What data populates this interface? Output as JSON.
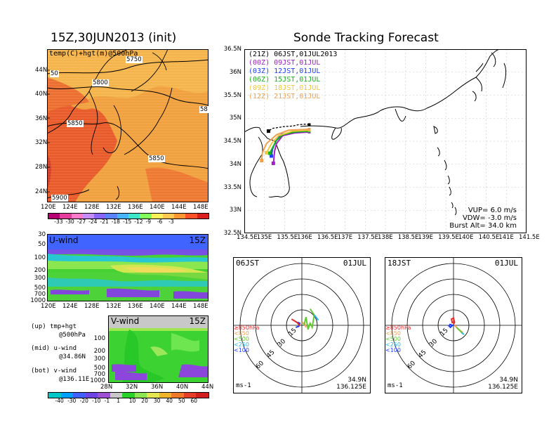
{
  "left_title": "15Z,30JUN2013 (init)",
  "right_title": "Sonde Tracking Forecast",
  "map500": {
    "label": "temp(C)+hgt(m)@500hPa",
    "lat_ticks": [
      "44N",
      "40N",
      "36N",
      "32N",
      "28N",
      "24N"
    ],
    "lon_ticks": [
      "120E",
      "124E",
      "128E",
      "132E",
      "136E",
      "140E",
      "144E",
      "148E"
    ],
    "contour_labels": [
      "50",
      "5750",
      "5800",
      "5850",
      "5850",
      "5900",
      "58"
    ],
    "colorbar_labels": [
      "-33",
      "-30",
      "-27",
      "-24",
      "-21",
      "-18",
      "-15",
      "-12",
      "-9",
      "-6",
      "-3"
    ],
    "colorbar_colors": [
      "#b40070",
      "#e43c9a",
      "#ff7ac8",
      "#c68cff",
      "#8a64ff",
      "#5a82ff",
      "#46b4ff",
      "#3ce6c8",
      "#82ff5a",
      "#fff05a",
      "#ffc850",
      "#ff9632",
      "#ff5028",
      "#dc1e1e"
    ]
  },
  "uwind": {
    "title": "U-wind",
    "time": "15Z",
    "p_ticks": [
      "30",
      "50",
      "100",
      "200",
      "300",
      "500",
      "700",
      "1000"
    ],
    "lon_ticks": [
      "120E",
      "124E",
      "128E",
      "132E",
      "136E",
      "140E",
      "144E",
      "148E"
    ]
  },
  "vwind": {
    "title": "V-wind",
    "time": "15Z",
    "p_ticks": [
      "100",
      "200",
      "300",
      "500",
      "700",
      "1000"
    ],
    "lat_ticks": [
      "28N",
      "32N",
      "36N",
      "40N",
      "44N"
    ],
    "colorbar_labels": [
      "-40",
      "-30",
      "-20",
      "-10",
      "-1",
      "1",
      "10",
      "20",
      "30",
      "40",
      "50",
      "60"
    ],
    "colorbar_colors": [
      "#00c8c8",
      "#00a0ff",
      "#4060ff",
      "#6e46e6",
      "#a050d2",
      "#c8c8c8",
      "#28d228",
      "#8ce650",
      "#e6e650",
      "#f0b428",
      "#f07828",
      "#e63c28",
      "#d21e1e"
    ]
  },
  "notes": [
    {
      "line1": "(up) tmp+hgt",
      "line2": "@500hPa"
    },
    {
      "line1": "(mid) u-wind",
      "line2": "@34.86N"
    },
    {
      "line1": "(bot) v-wind",
      "line2": "@136.11E"
    }
  ],
  "track_map": {
    "lat_ticks": [
      "36.5N",
      "36N",
      "35.5N",
      "35N",
      "34.5N",
      "34N",
      "33.5N",
      "33N",
      "32.5N"
    ],
    "lon_ticks": [
      "134.5E",
      "135E",
      "135.5E",
      "136E",
      "136.5E",
      "137E",
      "137.5E",
      "138E",
      "138.5E",
      "139E",
      "139.5E",
      "140E",
      "140.5E",
      "141E",
      "141.5E"
    ],
    "legend": [
      {
        "time": "(21Z)",
        "label": "06JST,01JUL2013",
        "color": "#000000"
      },
      {
        "time": "(00Z)",
        "label": "09JST,01JUL",
        "color": "#a020c8"
      },
      {
        "time": "(03Z)",
        "label": "12JST,01JUL",
        "color": "#1e3cff"
      },
      {
        "time": "(06Z)",
        "label": "15JST,01JUL",
        "color": "#14b414"
      },
      {
        "time": "(09Z)",
        "label": "18JST,01JUL",
        "color": "#f0c83c"
      },
      {
        "time": "(12Z)",
        "label": "21JST,01JUL",
        "color": "#f0a050"
      }
    ],
    "params": [
      {
        "label": "VUP=",
        "value": "6.0",
        "unit": "m/s"
      },
      {
        "label": "VDW=",
        "value": "-3.0",
        "unit": "m/s"
      },
      {
        "label": "Burst Alt=",
        "value": "34.0",
        "unit": "km"
      }
    ]
  },
  "hodo1": {
    "time": "06JST",
    "date": "01JUL",
    "ring_labels": [
      "15",
      "30",
      "45",
      "60"
    ],
    "levels": [
      "≥850hPa",
      "<850",
      "<500",
      "<250",
      "<100"
    ],
    "level_colors": [
      "#e62828",
      "#f0a050",
      "#64c832",
      "#28b4e6",
      "#1e3cff"
    ],
    "unit": "ms-1",
    "lat": "34.9N",
    "lon": "136.125E"
  },
  "hodo2": {
    "time": "18JST",
    "date": "01JUL",
    "ring_labels": [
      "15",
      "30",
      "45",
      "60"
    ],
    "levels": [
      "≥850hPa",
      "<850",
      "<500",
      "<250",
      "<100"
    ],
    "level_colors": [
      "#e62828",
      "#f0a050",
      "#64c832",
      "#28b4e6",
      "#1e3cff"
    ],
    "unit": "ms-1",
    "lat": "34.9N",
    "lon": "136.125E"
  },
  "chart_data": [
    {
      "type": "heatmap",
      "title": "15Z,30JUN2013 (init)",
      "subtitle": "temp(C)+hgt(m)@500hPa",
      "x_ticks": [
        "120E",
        "124E",
        "128E",
        "132E",
        "136E",
        "140E",
        "144E",
        "148E"
      ],
      "y_ticks": [
        "24N",
        "28N",
        "32N",
        "36N",
        "40N",
        "44N"
      ],
      "contour_values": [
        5750,
        5800,
        5850,
        5900
      ],
      "colorbar": [
        -33,
        -30,
        -27,
        -24,
        -21,
        -18,
        -15,
        -12,
        -9,
        -6,
        -3
      ]
    },
    {
      "type": "heatmap",
      "title": "U-wind",
      "x_ticks": [
        "120E",
        "124E",
        "128E",
        "132E",
        "136E",
        "140E",
        "144E",
        "148E"
      ],
      "y_ticks": [
        30,
        50,
        100,
        200,
        300,
        500,
        700,
        1000
      ],
      "y_scale": "log"
    },
    {
      "type": "heatmap",
      "title": "V-wind",
      "x_ticks": [
        "28N",
        "32N",
        "36N",
        "40N",
        "44N"
      ],
      "y_ticks": [
        100,
        200,
        300,
        500,
        700,
        1000
      ],
      "y_scale": "log",
      "colorbar": [
        -40,
        -30,
        -20,
        -10,
        -1,
        1,
        10,
        20,
        30,
        40,
        50,
        60
      ]
    },
    {
      "type": "line",
      "title": "Sonde Tracking Forecast",
      "xlim": [
        134.5,
        141.5
      ],
      "ylim": [
        32.5,
        36.5
      ],
      "series": [
        {
          "name": "(21Z) 06JST,01JUL2013",
          "points": [
            [
              136.11,
              34.86
            ],
            [
              136.0,
              34.87
            ],
            [
              135.85,
              34.86
            ],
            [
              135.7,
              34.83
            ],
            [
              135.5,
              34.82
            ],
            [
              135.35,
              34.8
            ],
            [
              135.2,
              34.78
            ],
            [
              135.1,
              34.72
            ]
          ]
        },
        {
          "name": "(00Z) 09JST,01JUL",
          "points": [
            [
              136.11,
              34.7
            ],
            [
              135.75,
              34.68
            ],
            [
              135.45,
              34.62
            ],
            [
              135.3,
              34.45
            ],
            [
              135.25,
              34.28
            ],
            [
              135.23,
              34.08
            ],
            [
              135.22,
              34.02
            ]
          ]
        },
        {
          "name": "(03Z) 12JST,01JUL",
          "points": [
            [
              136.11,
              34.72
            ],
            [
              135.75,
              34.7
            ],
            [
              135.42,
              34.65
            ],
            [
              135.28,
              34.5
            ],
            [
              135.2,
              34.33
            ],
            [
              135.17,
              34.18
            ]
          ]
        },
        {
          "name": "(06Z) 15JST,01JUL",
          "points": [
            [
              136.11,
              34.72
            ],
            [
              135.75,
              34.7
            ],
            [
              135.45,
              34.64
            ],
            [
              135.3,
              34.52
            ],
            [
              135.2,
              34.36
            ],
            [
              135.13,
              34.24
            ]
          ]
        },
        {
          "name": "(09Z) 18JST,01JUL",
          "points": [
            [
              136.11,
              34.74
            ],
            [
              135.7,
              34.72
            ],
            [
              135.35,
              34.62
            ],
            [
              135.18,
              34.46
            ],
            [
              135.05,
              34.25
            ]
          ]
        },
        {
          "name": "(12Z) 21JST,01JUL",
          "points": [
            [
              136.11,
              34.76
            ],
            [
              135.6,
              34.74
            ],
            [
              135.3,
              34.64
            ],
            [
              135.05,
              34.45
            ],
            [
              134.95,
              34.25
            ],
            [
              134.93,
              34.08
            ]
          ]
        }
      ]
    }
  ]
}
